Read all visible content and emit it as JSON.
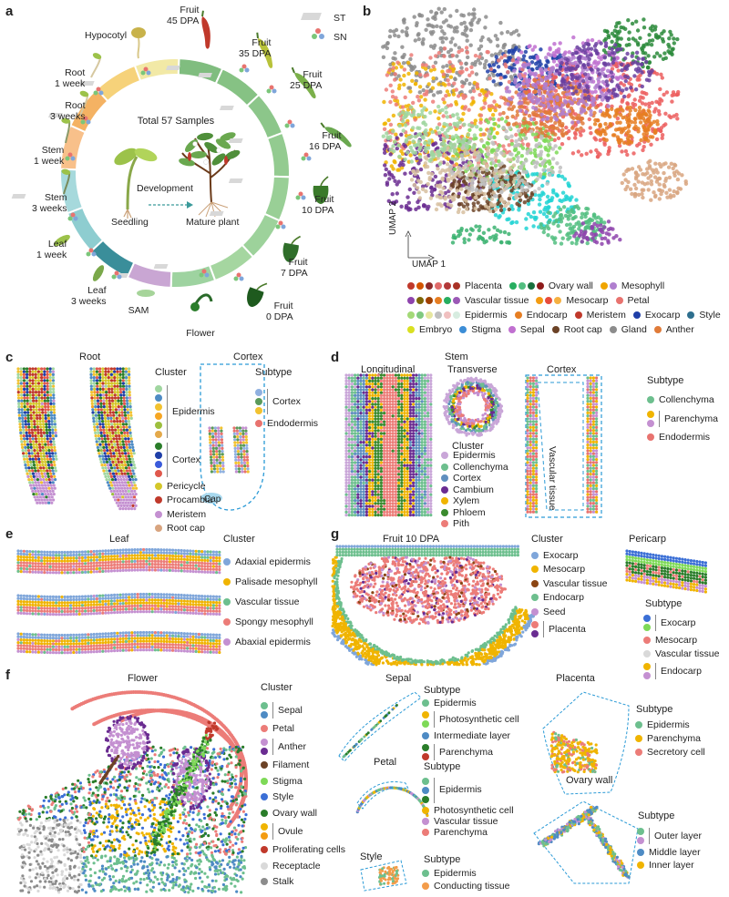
{
  "panel_letters": {
    "a": "a",
    "b": "b",
    "c": "c",
    "d": "d",
    "e": "e",
    "f": "f",
    "g": "g"
  },
  "panel_a": {
    "center_title": "Total 57 Samples",
    "development": "Development",
    "seedling": "Seedling",
    "mature_plant": "Mature plant",
    "st": "ST",
    "sn": "SN",
    "stages": [
      {
        "name": "Hypocotyl"
      },
      {
        "name": "Root\n1 week"
      },
      {
        "name": "Root\n3 weeks"
      },
      {
        "name": "Stem\n1 week"
      },
      {
        "name": "Stem\n3 weeks"
      },
      {
        "name": "Leaf\n1 week"
      },
      {
        "name": "Leaf\n3 weeks"
      },
      {
        "name": "SAM"
      },
      {
        "name": "Flower"
      },
      {
        "name": "Fruit\n0 DPA"
      },
      {
        "name": "Fruit\n7 DPA"
      },
      {
        "name": "Fruit\n10 DPA"
      },
      {
        "name": "Fruit\n16 DPA"
      },
      {
        "name": "Fruit\n25 DPA"
      },
      {
        "name": "Fruit\n35 DPA"
      },
      {
        "name": "Fruit\n45 DPA"
      }
    ],
    "ring_colors": [
      "#f2e9a6",
      "#f6d27a",
      "#f4b263",
      "#f8c08a",
      "#a6d9dc",
      "#8ecdd0",
      "#3a8e9a",
      "#c9a6d3",
      "#9ed3a0",
      "#a5d6a0",
      "#9dd29b",
      "#99cf96",
      "#93cb90",
      "#8cc68a",
      "#86c284",
      "#80bd7f"
    ],
    "sample_counts": {
      "st_color": "#c8c8c8",
      "sn_colors": [
        "#e8736f",
        "#7bc67a",
        "#7fa6da"
      ]
    }
  },
  "panel_b": {
    "axis_y": "UMAP 2",
    "axis_x": "UMAP 1",
    "legend": [
      {
        "label": "Placenta",
        "colors": [
          "#c0392b",
          "#d35400",
          "#8e2a2a",
          "#e06b6b",
          "#b33939",
          "#a93226"
        ]
      },
      {
        "label": "Ovary wall",
        "colors": [
          "#27ae60",
          "#52be80",
          "#196f3d",
          "#8e1a1a"
        ]
      },
      {
        "label": "Mesophyll",
        "colors": [
          "#f0a500",
          "#b07fcf"
        ]
      },
      {
        "label": "Vascular tissue",
        "colors": [
          "#8e44ad",
          "#7d6608",
          "#a04000",
          "#e67e22",
          "#27ae60",
          "#9b59b6"
        ]
      },
      {
        "label": "Mesocarp",
        "colors": [
          "#f39c12",
          "#e74c3c",
          "#f5b041"
        ]
      },
      {
        "label": "Petal",
        "colors": [
          "#e8736f"
        ]
      },
      {
        "label": "Epidermis",
        "colors": [
          "#a3d977",
          "#7fc97f",
          "#e6e6a0",
          "#bfbfbf",
          "#f0c0c0",
          "#d7ece0"
        ]
      },
      {
        "label": "Endocarp",
        "colors": [
          "#e67e22"
        ]
      },
      {
        "label": "Meristem",
        "colors": [
          "#c0392b"
        ]
      },
      {
        "label": "Exocarp",
        "colors": [
          "#1f3fa8"
        ]
      },
      {
        "label": "Style",
        "colors": [
          "#2e6f8e"
        ]
      },
      {
        "label": "Embryo",
        "colors": [
          "#d9e021"
        ]
      },
      {
        "label": "Stigma",
        "colors": [
          "#3c8dd6"
        ]
      },
      {
        "label": "Sepal",
        "colors": [
          "#c070d0"
        ]
      },
      {
        "label": "Root cap",
        "colors": [
          "#6b4226"
        ]
      },
      {
        "label": "Gland",
        "colors": [
          "#8c8c8c"
        ]
      },
      {
        "label": "Anther",
        "colors": [
          "#e07b39"
        ]
      }
    ]
  },
  "panel_c": {
    "title_root": "Root",
    "title_cortex": "Cortex",
    "cluster_title": "Cluster",
    "subtype_title": "Subtype",
    "cap": "Cap",
    "clusters": [
      {
        "label": "Epidermis",
        "colors": [
          "#a0d6a0",
          "#4e8bc4",
          "#f2c230",
          "#f6a623",
          "#9dbf3e",
          "#e4a94a"
        ]
      },
      {
        "label": "Cortex",
        "colors": [
          "#2a7d2a",
          "#1f3fa8",
          "#3b5bdb",
          "#e0584c"
        ]
      },
      {
        "label": "Pericycle",
        "colors": [
          "#d4c72a"
        ]
      },
      {
        "label": "Procambia",
        "colors": [
          "#c0392b"
        ]
      },
      {
        "label": "Meristem",
        "colors": [
          "#c490d1"
        ]
      },
      {
        "label": "Root cap",
        "colors": [
          "#d8a47f"
        ]
      }
    ],
    "subtypes": [
      {
        "label": "Cortex",
        "colors": [
          "#8fb0e0",
          "#5a9a5a",
          "#f2c230"
        ]
      },
      {
        "label": "Endodermis",
        "colors": [
          "#e8736f"
        ]
      }
    ]
  },
  "panel_d": {
    "title_stem": "Stem",
    "longitudinal": "Longitudinal",
    "transverse": "Transverse",
    "cortex": "Cortex",
    "vascular_tissue": "Vascular tissue",
    "cluster_title": "Cluster",
    "subtype_title": "Subtype",
    "clusters": [
      {
        "label": "Epidermis",
        "color": "#c9a6d8"
      },
      {
        "label": "Collenchyma",
        "color": "#6dbf8e"
      },
      {
        "label": "Cortex",
        "color": "#5f8fbf"
      },
      {
        "label": "Cambium",
        "color": "#6a2c91"
      },
      {
        "label": "Xylem",
        "color": "#f0b400"
      },
      {
        "label": "Phloem",
        "color": "#3a8a2e"
      },
      {
        "label": "Pith",
        "color": "#ec7c78"
      }
    ],
    "subtypes": [
      {
        "label": "Collenchyma",
        "colors": [
          "#6dbf8e"
        ]
      },
      {
        "label": "Parenchyma",
        "colors": [
          "#f0b400",
          "#c490d1"
        ]
      },
      {
        "label": "Endodermis",
        "colors": [
          "#e8736f"
        ]
      }
    ]
  },
  "panel_e": {
    "title": "Leaf",
    "cluster_title": "Cluster",
    "clusters": [
      {
        "label": "Adaxial epidermis",
        "color": "#7fa6da"
      },
      {
        "label": "Palisade mesophyll",
        "color": "#f0b400"
      },
      {
        "label": "Vascular tissue",
        "color": "#6dbf8e"
      },
      {
        "label": "Spongy mesophyll",
        "color": "#ec7c78"
      },
      {
        "label": "Abaxial epidermis",
        "color": "#c490d1"
      }
    ]
  },
  "panel_g": {
    "title": "Fruit 10 DPA",
    "pericarp": "Pericarp",
    "cluster_title": "Cluster",
    "subtype_title": "Subtype",
    "clusters": [
      {
        "label": "Exocarp",
        "colors": [
          "#7fa6da"
        ]
      },
      {
        "label": "Mesocarp",
        "colors": [
          "#f0b400"
        ]
      },
      {
        "label": "Vascular tissue",
        "colors": [
          "#8b4513"
        ]
      },
      {
        "label": "Endocarp",
        "colors": [
          "#6dbf8e"
        ]
      },
      {
        "label": "Seed",
        "colors": [
          "#c490d1"
        ]
      },
      {
        "label": "Placenta",
        "colors": [
          "#ec7c78",
          "#6a2c91"
        ]
      }
    ],
    "subtypes": [
      {
        "label": "Exocarp",
        "colors": [
          "#3b6fd6",
          "#7ed957"
        ]
      },
      {
        "label": "Mesocarp",
        "colors": [
          "#ec7c78"
        ]
      },
      {
        "label": "Vascular tissue",
        "colors": [
          "#d9d9d9"
        ]
      },
      {
        "label": "Endocarp",
        "colors": [
          "#f0b400",
          "#c490d1"
        ]
      }
    ]
  },
  "panel_f": {
    "title": "Flower",
    "cluster_title": "Cluster",
    "clusters": [
      {
        "label": "Sepal",
        "colors": [
          "#6dbf8e",
          "#4e8bc4"
        ]
      },
      {
        "label": "Petal",
        "colors": [
          "#ec7c78"
        ]
      },
      {
        "label": "Anther",
        "colors": [
          "#c490d1",
          "#6a2c91"
        ]
      },
      {
        "label": "Filament",
        "colors": [
          "#6b4226"
        ]
      },
      {
        "label": "Stigma",
        "colors": [
          "#7ed957"
        ]
      },
      {
        "label": "Style",
        "colors": [
          "#3b6fd6"
        ]
      },
      {
        "label": "Ovary wall",
        "colors": [
          "#2a7d2a"
        ]
      },
      {
        "label": "Ovule",
        "colors": [
          "#f0b400",
          "#f39c12"
        ]
      },
      {
        "label": "Proliferating cells",
        "colors": [
          "#c0392b"
        ]
      },
      {
        "label": "Receptacle",
        "colors": [
          "#d9d9d9"
        ]
      },
      {
        "label": "Stalk",
        "colors": [
          "#8c8c8c"
        ]
      }
    ],
    "sepal": {
      "title": "Sepal",
      "subtype_title": "Subtype",
      "items": [
        {
          "label": "Epidermis",
          "colors": [
            "#6dbf8e"
          ]
        },
        {
          "label": "Photosynthetic cell",
          "colors": [
            "#f0b400",
            "#7ed957"
          ]
        },
        {
          "label": "Intermediate layer",
          "colors": [
            "#4e8bc4"
          ]
        },
        {
          "label": "Parenchyma",
          "colors": [
            "#2a7d2a",
            "#c0392b"
          ]
        }
      ]
    },
    "placenta": {
      "title": "Placenta",
      "subtype_title": "Subtype",
      "items": [
        {
          "label": "Epidermis",
          "colors": [
            "#6dbf8e"
          ]
        },
        {
          "label": "Parenchyma",
          "colors": [
            "#f0b400"
          ]
        },
        {
          "label": "Secretory cell",
          "colors": [
            "#ec7c78"
          ]
        }
      ]
    },
    "petal": {
      "title": "Petal",
      "subtype_title": "Subtype",
      "items": [
        {
          "label": "Epidermis",
          "colors": [
            "#6dbf8e",
            "#4e8bc4",
            "#2a7d2a"
          ]
        },
        {
          "label": "Photosynthetic cell",
          "colors": [
            "#f0b400"
          ]
        },
        {
          "label": "Vascular tissue",
          "colors": [
            "#c490d1"
          ]
        },
        {
          "label": "Parenchyma",
          "colors": [
            "#ec7c78"
          ]
        }
      ]
    },
    "ovary": {
      "title": "Ovary wall",
      "subtype_title": "Subtype",
      "items": [
        {
          "label": "Outer layer",
          "colors": [
            "#6dbf8e",
            "#c490d1"
          ]
        },
        {
          "label": "Middle layer",
          "colors": [
            "#4e8bc4"
          ]
        },
        {
          "label": "Inner layer",
          "colors": [
            "#f0b400"
          ]
        }
      ]
    },
    "style": {
      "title": "Style",
      "subtype_title": "Subtype",
      "items": [
        {
          "label": "Epidermis",
          "colors": [
            "#6dbf8e"
          ]
        },
        {
          "label": "Conducting tissue",
          "colors": [
            "#f39c4a"
          ]
        }
      ]
    }
  }
}
